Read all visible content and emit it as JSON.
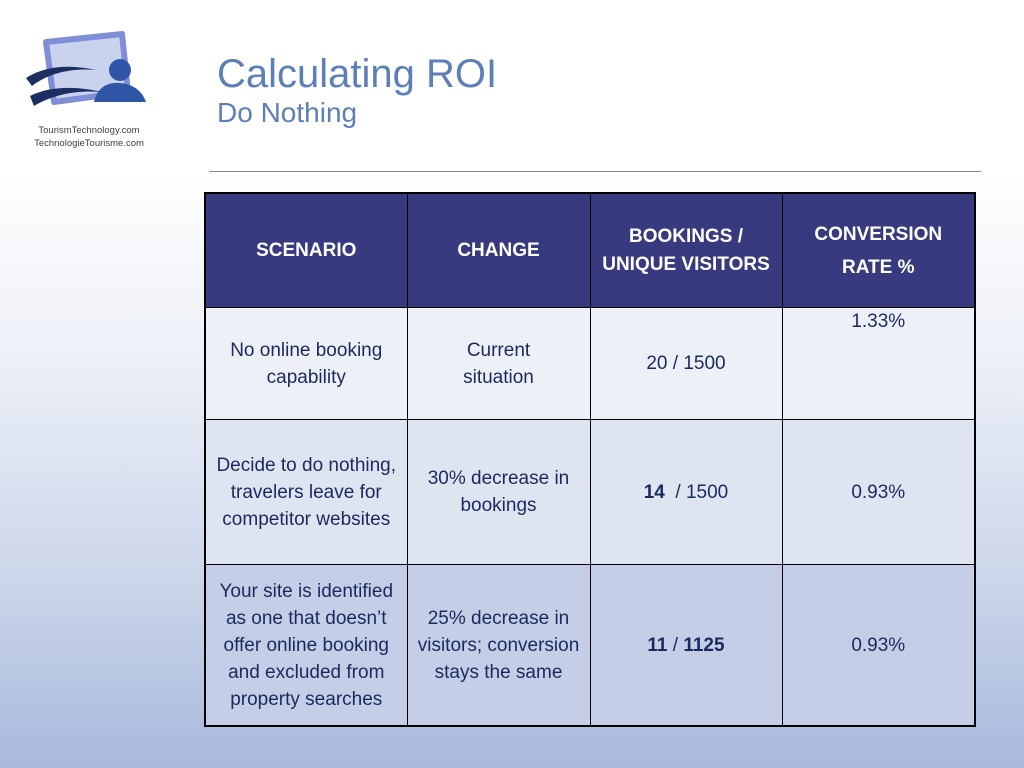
{
  "logo": {
    "line1": "TourismTechnology.com",
    "line2": "TechnologieTourisme.com"
  },
  "title": "Calculating ROI",
  "subtitle": "Do Nothing",
  "table": {
    "headers": [
      "SCENARIO",
      "CHANGE",
      "BOOKINGS / UNIQUE VISITORS",
      "CONVERSION RATE %"
    ],
    "rows": [
      {
        "scenario": "No online booking capability",
        "change": "Current situation",
        "bookings": "20",
        "visitors": "1500",
        "conversion": "1.33%"
      },
      {
        "scenario": "Decide to do nothing, travelers leave for competitor websites",
        "change": "30% decrease in bookings",
        "bookings": "14",
        "visitors": "1500",
        "conversion": "0.93%"
      },
      {
        "scenario": "Your site is identified as one that doesn’t offer online booking and excluded from property searches",
        "change": "25% decrease in visitors; conversion stays the same",
        "bookings": "11",
        "visitors": "1125",
        "conversion": "0.93%"
      }
    ]
  }
}
